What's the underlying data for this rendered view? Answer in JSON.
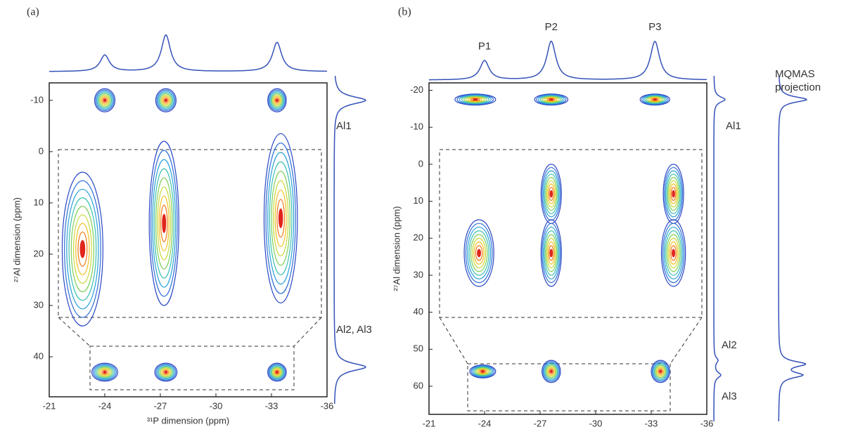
{
  "chart_data": [
    {
      "type": "contour",
      "panel_label": "(a)",
      "xlabel": "³¹P dimension (ppm)",
      "ylabel": "²⁷Al dimension (ppm)",
      "xlim": [
        -21,
        -36
      ],
      "xticks": [
        -21,
        -24,
        -27,
        -30,
        -33,
        -36
      ],
      "ylim": [
        -13.4,
        47.8
      ],
      "yticks": [
        -10,
        0,
        10,
        20,
        30,
        40
      ],
      "peaks": {
        "x": [
          -24,
          -27.3,
          -33.3,
          -22.8,
          -27.2,
          -33.5,
          -24,
          -27.3,
          -33.3
        ],
        "y": [
          -10,
          -10,
          -10,
          19,
          14,
          13,
          43,
          43,
          43
        ],
        "x_width": [
          1.1,
          1.1,
          1.0,
          2.2,
          1.6,
          1.8,
          1.4,
          1.2,
          1.0
        ],
        "y_width": [
          4.5,
          4.5,
          4.5,
          30,
          32,
          33,
          3.5,
          3.5,
          3.5
        ]
      },
      "top_projection": {
        "x": [
          -24,
          -27.3,
          -33.3
        ],
        "heights": [
          0.45,
          1.0,
          0.8
        ]
      },
      "side_projection": {
        "y": [
          -10,
          42
        ],
        "heights": [
          1.0,
          1.0
        ]
      },
      "annotations": [
        "Al1",
        "Al2, Al3"
      ]
    },
    {
      "type": "contour",
      "panel_label": "(b)",
      "xlabel": "³¹P dimension (ppm)",
      "ylabel": "²⁷Al dimension (ppm)",
      "xlim": [
        -21,
        -36
      ],
      "xticks": [
        -21,
        -24,
        -27,
        -30,
        -33,
        -36
      ],
      "ylim": [
        -22,
        67.6
      ],
      "yticks": [
        -20,
        -10,
        0,
        10,
        20,
        30,
        40,
        50,
        60
      ],
      "peaks": {
        "x": [
          -23.5,
          -27.6,
          -33.2,
          -23.7,
          -27.6,
          -27.6,
          -34.2,
          -34.2,
          -23.9,
          -27.6,
          -33.5
        ],
        "y": [
          -17.5,
          -17.5,
          -17.5,
          24,
          8,
          24,
          8,
          24,
          56,
          56,
          56
        ],
        "x_width": [
          2.2,
          1.8,
          1.6,
          1.6,
          1.1,
          1.1,
          1.1,
          1.3,
          1.4,
          1.0,
          1.0
        ],
        "y_width": [
          3,
          3,
          3,
          18,
          16,
          18,
          16,
          18,
          3.5,
          6,
          6
        ]
      },
      "top_projection": {
        "x": [
          -24,
          -27.6,
          -33.2
        ],
        "heights": [
          0.5,
          1.0,
          1.0
        ]
      },
      "peak_labels": [
        "P1",
        "P2",
        "P3"
      ],
      "side_projection": {
        "y": [
          -17.5,
          53,
          57
        ],
        "heights": [
          1.0,
          0.35,
          0.6
        ]
      },
      "mqmas_projection": {
        "y": [
          -17.5,
          54,
          57
        ],
        "heights": [
          1.0,
          0.9,
          0.8
        ]
      },
      "annotations": [
        "Al1",
        "Al2",
        "Al3",
        "MQMAS projection"
      ]
    }
  ]
}
